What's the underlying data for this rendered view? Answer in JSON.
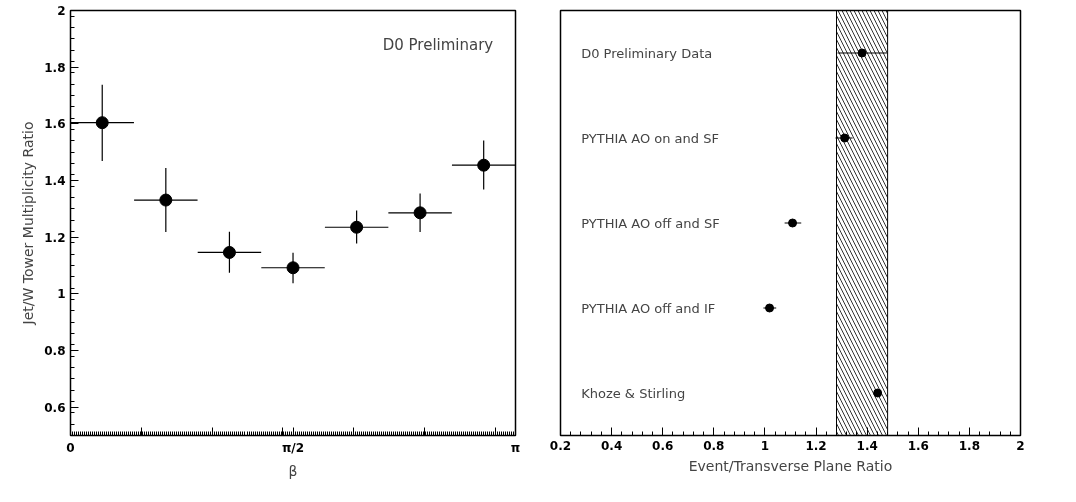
{
  "chart_data": [
    {
      "type": "scatter",
      "xlabel": "β",
      "ylabel": "Jet/W Tower Multiplicity Ratio",
      "annotations": [
        "D0 Preliminary"
      ],
      "x": [
        0.224,
        0.673,
        1.122,
        1.571,
        2.02,
        2.468,
        2.917
      ],
      "values": [
        1.604,
        1.331,
        1.146,
        1.092,
        1.235,
        1.286,
        1.454
      ],
      "errors": [
        [
          1.469,
          1.738
        ],
        [
          1.218,
          1.444
        ],
        [
          1.074,
          1.219
        ],
        [
          1.037,
          1.145
        ],
        [
          1.178,
          1.294
        ],
        [
          1.218,
          1.354
        ],
        [
          1.368,
          1.541
        ]
      ],
      "xerrors": [
        0.224,
        0.224,
        0.224,
        0.224,
        0.224,
        0.224,
        0.224
      ],
      "color": "#000000",
      "marker": "circle",
      "grid": false,
      "xlim": [
        0,
        3.1416
      ],
      "ylim": [
        0.5,
        2
      ],
      "xticks": [
        {
          "value": 0,
          "label": "0"
        },
        {
          "value": 0.5,
          "label": null
        },
        {
          "value": 1,
          "label": null
        },
        {
          "value": 1.5,
          "label": null
        },
        {
          "value": 1.5708,
          "label": "π/2"
        },
        {
          "value": 2,
          "label": null
        },
        {
          "value": 2.5,
          "label": null
        },
        {
          "value": 3,
          "label": null
        },
        {
          "value": 3.1416,
          "label": "π"
        }
      ],
      "yticks": [
        0.6,
        0.8,
        1,
        1.2,
        1.4,
        1.6,
        1.8,
        2
      ]
    },
    {
      "type": "scatter",
      "orientation": "horizontal",
      "xlabel": "Event/Transverse Plane Ratio",
      "categories": [
        "D0 Preliminary Data",
        "PYTHIA AO on and SF",
        "PYTHIA AO off and SF",
        "PYTHIA AO off and IF",
        "Khoze & Stirling"
      ],
      "values": [
        1.38,
        1.312,
        1.108,
        1.018,
        1.441
      ],
      "errors": [
        [
          1.284,
          1.477
        ],
        [
          1.276,
          1.343
        ],
        [
          1.077,
          1.142
        ],
        [
          0.994,
          1.044
        ],
        null
      ],
      "color": "#000000",
      "marker": "circle",
      "grid": false,
      "tick_labels": "x",
      "bands": [
        {
          "axis": "x",
          "from": 1.28,
          "to": 1.48,
          "color": "#000000"
        }
      ],
      "xlim": [
        0.2,
        2
      ],
      "xticks": [
        0.2,
        0.4,
        0.6,
        0.8,
        1,
        1.2,
        1.4,
        1.6,
        1.8,
        2
      ]
    }
  ]
}
